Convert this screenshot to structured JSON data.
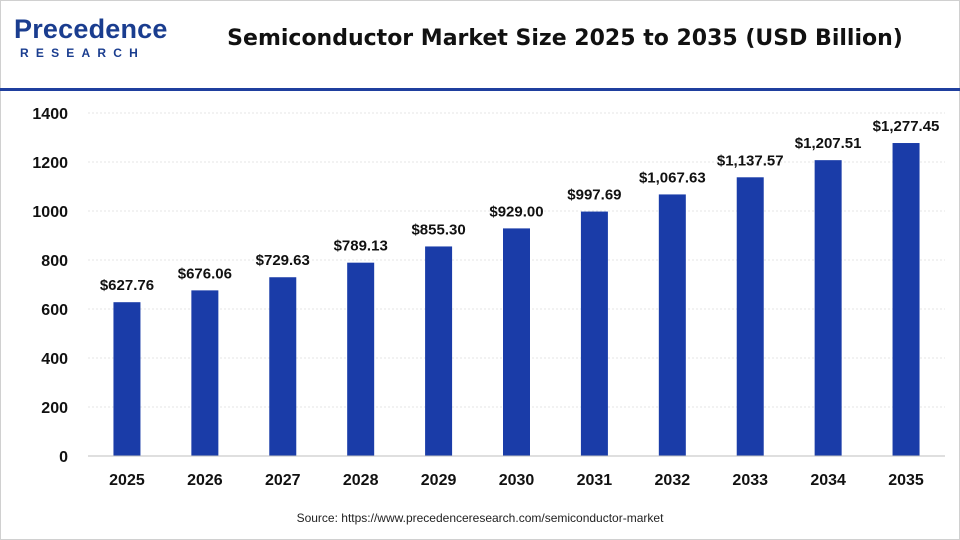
{
  "header": {
    "logo_text": "Precedence",
    "logo_subtext": "RESEARCH",
    "title": "Semiconductor Market Size 2025 to 2035 (USD Billion)"
  },
  "footer": {
    "source": "Source: https://www.precedenceresearch.com/semiconductor-market"
  },
  "colors": {
    "bar": "#1a3ca8",
    "accent_rule": "#1f3f9e",
    "brand": "#1a3d8f"
  },
  "chart_data": {
    "type": "bar",
    "title": "Semiconductor Market Size 2025 to 2035 (USD Billion)",
    "xlabel": "",
    "ylabel": "",
    "categories": [
      "2025",
      "2026",
      "2027",
      "2028",
      "2029",
      "2030",
      "2031",
      "2032",
      "2033",
      "2034",
      "2035"
    ],
    "values": [
      627.76,
      676.06,
      729.63,
      789.13,
      855.3,
      929.0,
      997.69,
      1067.63,
      1137.57,
      1207.51,
      1277.45
    ],
    "value_labels": [
      "$627.76",
      "$676.06",
      "$729.63",
      "$789.13",
      "$855.30",
      "$929.00",
      "$997.69",
      "$1,067.63",
      "$1,137.57",
      "$1,207.51",
      "$1,277.45"
    ],
    "ylim": [
      0,
      1400
    ],
    "yticks": [
      0,
      200,
      400,
      600,
      800,
      1000,
      1200,
      1400
    ],
    "grid": true,
    "legend": "none"
  }
}
